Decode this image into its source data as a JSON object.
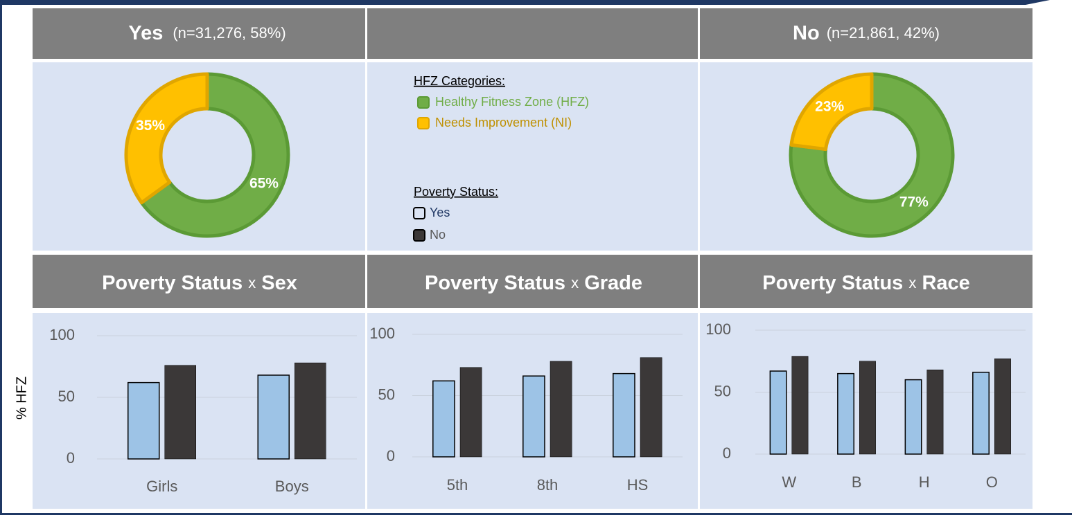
{
  "chart_data": [
    {
      "type": "donut",
      "title": "Yes",
      "subtitle": "(n=31,276, 58%)",
      "values": [
        65,
        35
      ],
      "value_labels": [
        "65%",
        "35%"
      ],
      "colors": [
        "#70ad47",
        "#ffc000"
      ]
    },
    {
      "type": "donut",
      "title": "No",
      "subtitle": "(n=21,861, 42%)",
      "values": [
        77,
        23
      ],
      "value_labels": [
        "77%",
        "23%"
      ],
      "colors": [
        "#70ad47",
        "#ffc000"
      ]
    },
    {
      "type": "bar",
      "title_parts": [
        "Poverty Status",
        "x",
        "Sex"
      ],
      "ylabel": "% HFZ",
      "categories": [
        "Girls",
        "Boys"
      ],
      "series": [
        {
          "color": "#9dc3e6",
          "values": [
            62,
            68
          ]
        },
        {
          "color": "#3b3838",
          "values": [
            76,
            78
          ]
        }
      ],
      "ylim": [
        0,
        100
      ],
      "yticks": [
        0,
        50,
        100
      ],
      "grid": true
    },
    {
      "type": "bar",
      "title_parts": [
        "Poverty Status",
        "x",
        "Grade"
      ],
      "categories": [
        "5th",
        "8th",
        "HS"
      ],
      "series": [
        {
          "color": "#9dc3e6",
          "values": [
            62,
            66,
            68
          ]
        },
        {
          "color": "#3b3838",
          "values": [
            73,
            78,
            81
          ]
        }
      ],
      "ylim": [
        0,
        100
      ],
      "yticks": [
        0,
        50,
        100
      ],
      "grid": true
    },
    {
      "type": "bar",
      "title_parts": [
        "Poverty Status",
        "x",
        "Race"
      ],
      "categories": [
        "W",
        "B",
        "H",
        "O"
      ],
      "series": [
        {
          "color": "#9dc3e6",
          "values": [
            67,
            65,
            60,
            66
          ]
        },
        {
          "color": "#3b3838",
          "values": [
            79,
            75,
            68,
            77
          ]
        }
      ],
      "ylim": [
        0,
        100
      ],
      "yticks": [
        0,
        50,
        100
      ],
      "grid": true
    }
  ],
  "legend": {
    "hfz_title": "HFZ Categories:",
    "hfz": [
      "Healthy Fitness Zone (HFZ)",
      "Needs Improvement (NI)"
    ],
    "poverty_title": "Poverty Status:",
    "poverty": [
      "Yes",
      "No"
    ]
  }
}
